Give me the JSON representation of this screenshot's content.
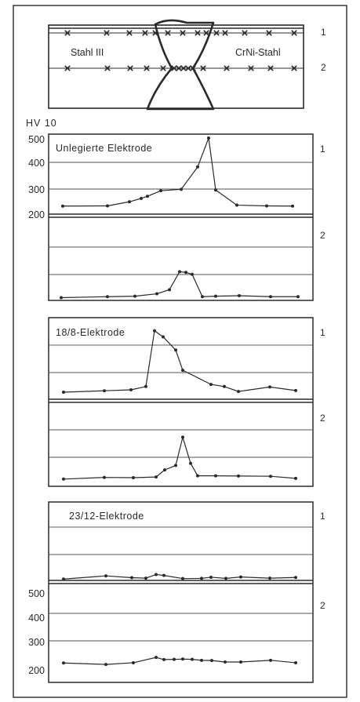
{
  "schematic": {
    "left_label": "Stahl III",
    "right_label": "CrNi-Stahl",
    "row_labels": [
      "1",
      "2"
    ]
  },
  "axis_title": "HV 10",
  "y_ticks": [
    "500",
    "400",
    "300",
    "200"
  ],
  "chart_data": [
    {
      "type": "line",
      "title": "Unlegierte Elektrode",
      "ylabel": "HV 10",
      "ylim": [
        200,
        500
      ],
      "series": [
        {
          "name": "1",
          "x": [
            80,
            137,
            165,
            180,
            188,
            205,
            231,
            252,
            266,
            275,
            302,
            340,
            373
          ],
          "values": [
            217,
            218,
            235,
            249,
            258,
            281,
            287,
            380,
            500,
            284,
            221,
            218,
            217
          ]
        },
        {
          "name": "2",
          "x": [
            78,
            137,
            172,
            200,
            216,
            229,
            237,
            245,
            258,
            275,
            305,
            345,
            380
          ],
          "values": [
            205,
            209,
            211,
            221,
            238,
            313,
            310,
            302,
            209,
            211,
            213,
            209,
            209
          ]
        }
      ]
    },
    {
      "type": "line",
      "title": "18/8-Elektrode",
      "ylabel": "HV 10",
      "ylim": [
        200,
        500
      ],
      "series": [
        {
          "name": "1",
          "x": [
            81,
            133,
            167,
            186,
            197,
            208,
            224,
            233,
            269,
            286,
            304,
            344,
            377
          ],
          "values": [
            220,
            226,
            230,
            244,
            481,
            455,
            399,
            313,
            253,
            244,
            223,
            242,
            227
          ]
        },
        {
          "name": "2",
          "x": [
            81,
            133,
            170,
            199,
            210,
            224,
            233,
            243,
            252,
            275,
            304,
            345,
            377
          ],
          "values": [
            214,
            221,
            220,
            223,
            253,
            272,
            392,
            281,
            228,
            228,
            227,
            226,
            217
          ]
        }
      ]
    },
    {
      "type": "line",
      "title": "23/12-Elektrode",
      "ylabel": "HV 10",
      "ylim": [
        200,
        500
      ],
      "series": [
        {
          "name": "1",
          "x": [
            81,
            135,
            168,
            186,
            199,
            209,
            233,
            257,
            269,
            288,
            307,
            344,
            377
          ],
          "values": [
            206,
            220,
            212,
            210,
            226,
            222,
            208,
            209,
            214,
            209,
            215,
            210,
            213
          ]
        },
        {
          "name": "2",
          "x": [
            81,
            135,
            170,
            199,
            209,
            222,
            233,
            245,
            257,
            270,
            287,
            307,
            345,
            377
          ],
          "values": [
            225,
            219,
            226,
            248,
            239,
            240,
            241,
            240,
            236,
            235,
            229,
            229,
            236,
            226
          ]
        }
      ]
    }
  ]
}
